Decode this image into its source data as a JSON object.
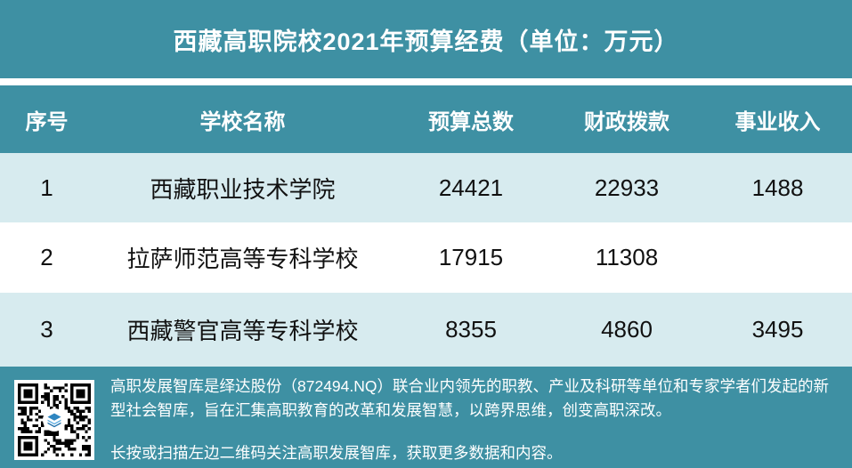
{
  "title": "西藏高职院校2021年预算经费（单位：万元）",
  "table": {
    "columns": [
      "序号",
      "学校名称",
      "预算总数",
      "财政拨款",
      "事业收入"
    ],
    "rows": [
      {
        "index": "1",
        "school": "西藏职业技术学院",
        "budget_total": "24421",
        "fiscal_allocation": "22933",
        "business_income": "1488"
      },
      {
        "index": "2",
        "school": "拉萨师范高等专科学校",
        "budget_total": "17915",
        "fiscal_allocation": "11308",
        "business_income": ""
      },
      {
        "index": "3",
        "school": "西藏警官高等专科学校",
        "budget_total": "8355",
        "fiscal_allocation": "4860",
        "business_income": "3495"
      }
    ]
  },
  "footer": {
    "about": "高职发展智库是绎达股份（872494.NQ）联合业内领先的职教、产业及科研等单位和专家学者们发起的新型社会智库，旨在汇集高职教育的改革和发展智慧，以跨界思维，创变高职深改。",
    "cta": "长按或扫描左边二维码关注高职发展智库，获取更多数据和内容。",
    "qr_icon": "qr-code",
    "logo_icon": "layers-logo"
  },
  "colors": {
    "teal": "#3E90A3",
    "row_light": "#D7EBEF",
    "row_white": "#FFFFFF",
    "text_dark": "#111111",
    "text_light": "#FFFFFF",
    "logo_blue_dark": "#1B6CA8",
    "logo_blue": "#2E86C1",
    "logo_blue_light": "#5DADE2"
  }
}
